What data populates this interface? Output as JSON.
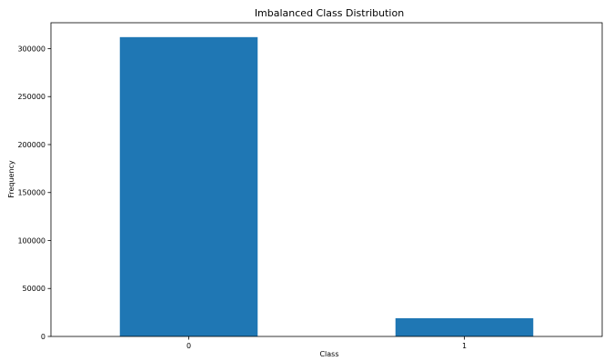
{
  "chart_data": {
    "type": "bar",
    "title": "Imbalanced Class Distribution",
    "xlabel": "Class",
    "ylabel": "Frequency",
    "categories": [
      "0",
      "1"
    ],
    "values": [
      312000,
      19000
    ],
    "ylim": [
      0,
      327000
    ],
    "yticks": [
      0,
      50000,
      100000,
      150000,
      200000,
      250000,
      300000
    ],
    "ytick_labels": [
      "0",
      "50000",
      "100000",
      "150000",
      "200000",
      "250000",
      "300000"
    ],
    "bar_color": "#1f77b4",
    "grid": false,
    "legend": false
  }
}
